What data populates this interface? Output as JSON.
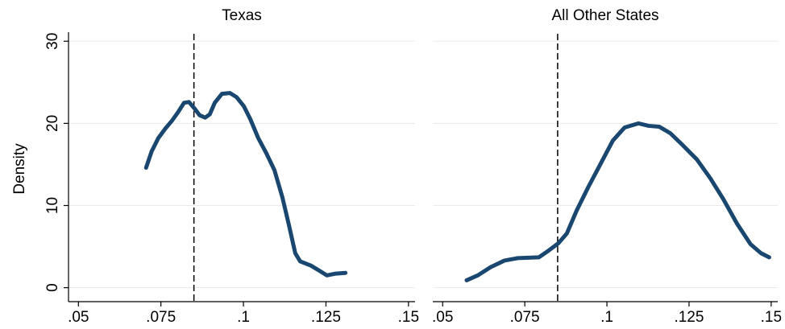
{
  "chart_data": [
    {
      "type": "line",
      "title": "Texas",
      "ylabel": "Density",
      "x": [
        0.0705,
        0.0722,
        0.0742,
        0.0764,
        0.0783,
        0.0801,
        0.082,
        0.0835,
        0.0852,
        0.0867,
        0.0884,
        0.0898,
        0.0913,
        0.0935,
        0.0959,
        0.0979,
        0.1001,
        0.1021,
        0.1045,
        0.1069,
        0.1094,
        0.1118,
        0.1138,
        0.1157,
        0.1172,
        0.1204,
        0.1233,
        0.1253,
        0.1277,
        0.1309
      ],
      "values": [
        14.6,
        16.6,
        18.2,
        19.4,
        20.3,
        21.3,
        22.5,
        22.6,
        21.8,
        21.0,
        20.7,
        21.1,
        22.5,
        23.6,
        23.7,
        23.2,
        22.1,
        20.5,
        18.2,
        16.4,
        14.3,
        11.0,
        7.6,
        4.2,
        3.2,
        2.7,
        2.0,
        1.5,
        1.7,
        1.8
      ],
      "color": "#1a476f",
      "reference_line": 0.085,
      "xlim": [
        0.047,
        0.152
      ],
      "ylim": [
        -1.7,
        31.1
      ],
      "xticks": [
        {
          "value": 0.05,
          "label": ".05"
        },
        {
          "value": 0.075,
          "label": ".075"
        },
        {
          "value": 0.1,
          "label": ".1"
        },
        {
          "value": 0.125,
          "label": ".125"
        },
        {
          "value": 0.15,
          "label": ".15"
        }
      ],
      "yticks": [
        0,
        10,
        20,
        30
      ],
      "ytick_labels": true,
      "y_axis_line": true,
      "grid": true
    },
    {
      "type": "line",
      "title": "All Other States",
      "x": [
        0.0573,
        0.0607,
        0.0646,
        0.0688,
        0.0729,
        0.0793,
        0.0822,
        0.0852,
        0.0878,
        0.0908,
        0.0944,
        0.0981,
        0.1018,
        0.1054,
        0.1096,
        0.1127,
        0.1159,
        0.1193,
        0.1232,
        0.1274,
        0.1315,
        0.1354,
        0.1396,
        0.1437,
        0.1469,
        0.1494
      ],
      "values": [
        0.9,
        1.5,
        2.5,
        3.3,
        3.6,
        3.7,
        4.5,
        5.4,
        6.6,
        9.4,
        12.3,
        15.1,
        17.9,
        19.5,
        20.0,
        19.7,
        19.6,
        18.8,
        17.3,
        15.6,
        13.3,
        10.8,
        7.8,
        5.3,
        4.2,
        3.7
      ],
      "color": "#1a476f",
      "reference_line": 0.085,
      "xlim": [
        0.047,
        0.152
      ],
      "ylim": [
        -1.7,
        31.1
      ],
      "xticks": [
        {
          "value": 0.05,
          "label": ".05"
        },
        {
          "value": 0.075,
          "label": ".075"
        },
        {
          "value": 0.1,
          "label": ".1"
        },
        {
          "value": 0.125,
          "label": ".125"
        },
        {
          "value": 0.15,
          "label": ".15"
        }
      ],
      "yticks": [
        0,
        10,
        20,
        30
      ],
      "ytick_labels": false,
      "y_axis_line": false,
      "grid": true
    }
  ]
}
